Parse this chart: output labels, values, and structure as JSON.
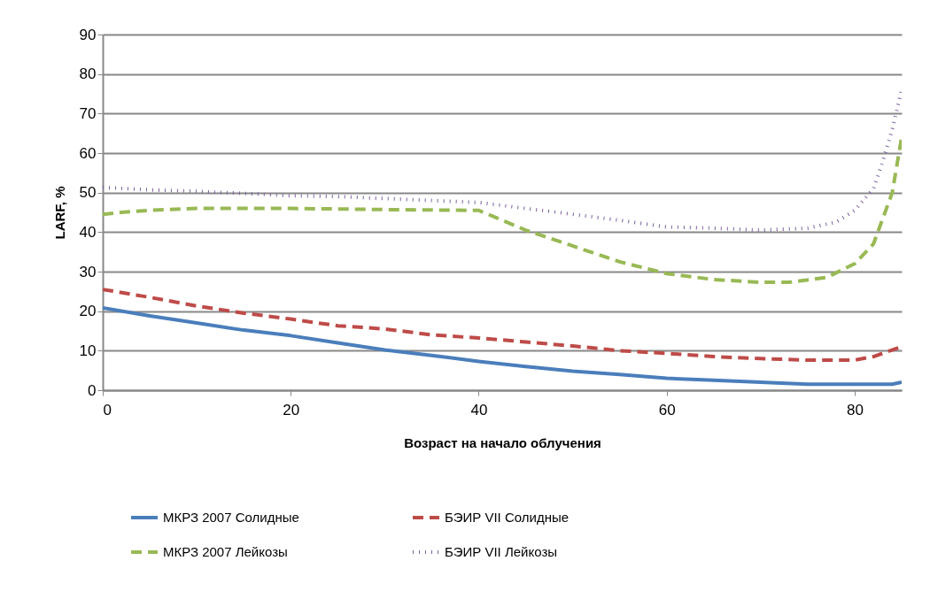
{
  "chart_data": {
    "type": "line",
    "xlabel": "Возраст на начало облучения",
    "ylabel": "LARF, %",
    "xlim": [
      0,
      85
    ],
    "xticks": [
      0,
      20,
      40,
      60,
      80
    ],
    "ylim": [
      0,
      90
    ],
    "yticks": [
      0,
      10,
      20,
      30,
      40,
      50,
      60,
      70,
      80,
      90
    ],
    "grid": "y",
    "legend": "bottom",
    "marker": "none",
    "series": [
      {
        "name": "МКРЗ 2007 Солидные",
        "color": "#4a7ebb",
        "line_style": "solid",
        "x": [
          0,
          5,
          10,
          15,
          20,
          25,
          30,
          35,
          40,
          45,
          50,
          55,
          60,
          65,
          70,
          75,
          80,
          84,
          85
        ],
        "values": [
          20.8,
          18.8,
          17,
          15.2,
          13.8,
          12,
          10.2,
          8.8,
          7.3,
          6,
          4.8,
          4,
          3,
          2.5,
          2,
          1.5,
          1.5,
          1.5,
          2
        ]
      },
      {
        "name": "БЭИР VII Солидные",
        "color": "#be4b48",
        "line_style": "dashed",
        "x": [
          0,
          5,
          10,
          15,
          20,
          25,
          30,
          35,
          40,
          45,
          50,
          55,
          60,
          65,
          70,
          75,
          80,
          82,
          85
        ],
        "values": [
          25.5,
          23.5,
          21.3,
          19.5,
          18,
          16.3,
          15.5,
          14,
          13.2,
          12.2,
          11.2,
          10,
          9.3,
          8.5,
          8,
          7.6,
          7.6,
          8.5,
          11
        ]
      },
      {
        "name": "МКРЗ 2007 Лейкозы",
        "color": "#98b954",
        "line_style": "dashed",
        "x": [
          0,
          2,
          5,
          10,
          20,
          30,
          40,
          42,
          45,
          50,
          55,
          60,
          65,
          70,
          73,
          77,
          80,
          82,
          84,
          85
        ],
        "values": [
          44.5,
          45,
          45.5,
          46,
          46,
          45.7,
          45.5,
          43.5,
          40.5,
          36.5,
          32.5,
          29.5,
          28,
          27.3,
          27.3,
          28.5,
          32,
          37,
          50,
          64
        ]
      },
      {
        "name": "БЭИР VII Лейкозы",
        "color": "#7d60a0",
        "line_style": "dotted",
        "x": [
          0,
          5,
          10,
          15,
          20,
          25,
          30,
          35,
          40,
          45,
          50,
          55,
          60,
          65,
          70,
          75,
          78,
          80,
          82,
          83,
          84,
          85
        ],
        "values": [
          51.3,
          50.7,
          50.3,
          49.8,
          49.2,
          49,
          48.5,
          48,
          47.5,
          46,
          44.5,
          43,
          41.3,
          41,
          40.5,
          41,
          42.5,
          45.5,
          51,
          58,
          66,
          76
        ]
      }
    ]
  }
}
